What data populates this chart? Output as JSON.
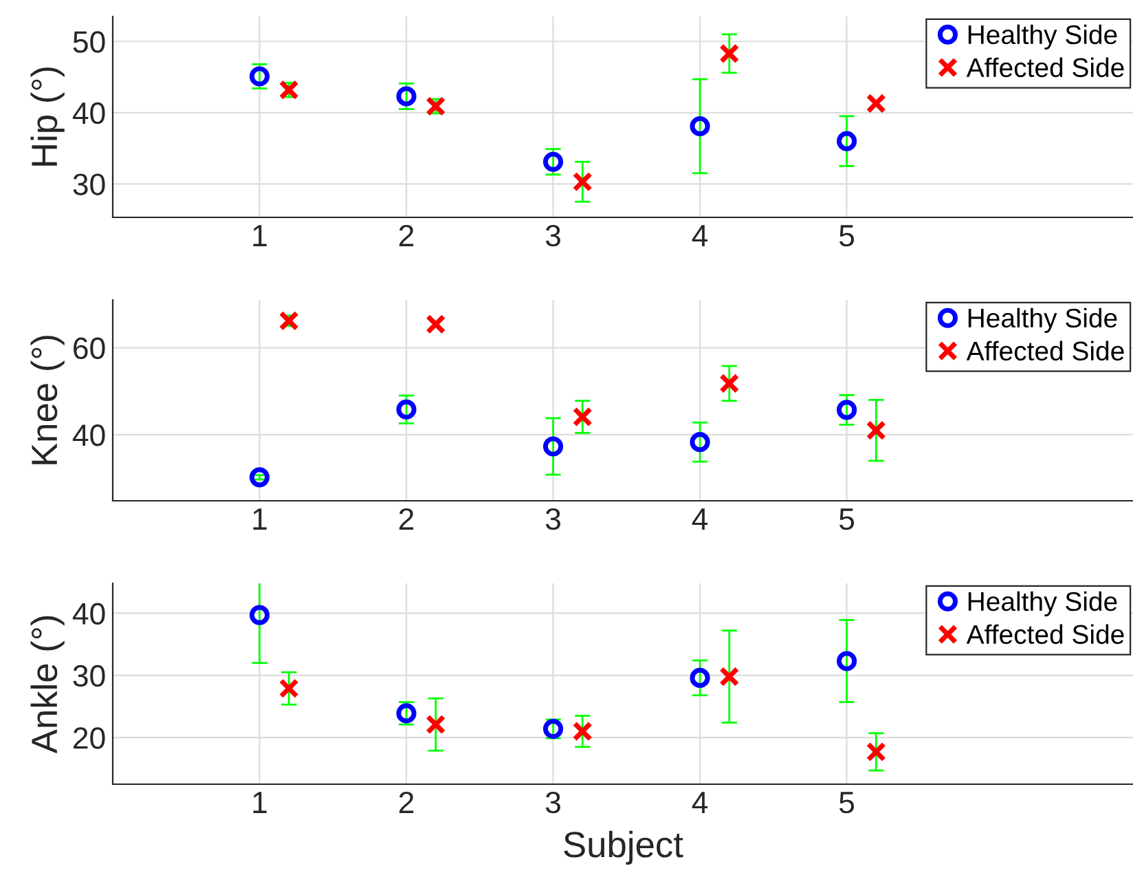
{
  "chart_data": [
    {
      "type": "scatter",
      "ylabel": "Hip (°)",
      "xlim": [
        0,
        6.95
      ],
      "xticks": [
        1,
        2,
        3,
        4,
        5
      ],
      "ylim": [
        25.3,
        53.5
      ],
      "yticks": [
        30,
        40,
        50
      ],
      "grid": true,
      "legend": "top right",
      "series": [
        {
          "name": "Healthy Side",
          "color": "#0000ff",
          "marker": "circle",
          "x": [
            1,
            2,
            3,
            4,
            5
          ],
          "values": [
            45.1,
            42.3,
            33.1,
            38.1,
            36.0
          ],
          "errors": [
            1.7,
            1.8,
            1.8,
            6.6,
            3.5
          ]
        },
        {
          "name": "Affected Side",
          "color": "#ff0000",
          "marker": "cross",
          "x": [
            1.2,
            2.2,
            3.2,
            4.2,
            5.2
          ],
          "values": [
            43.2,
            40.9,
            30.3,
            48.3,
            41.3
          ],
          "errors": [
            1.0,
            1.0,
            2.8,
            2.7,
            null
          ]
        }
      ]
    },
    {
      "type": "scatter",
      "ylabel": "Knee (°)",
      "xlim": [
        0,
        6.95
      ],
      "xticks": [
        1,
        2,
        3,
        4,
        5
      ],
      "ylim": [
        24.8,
        71
      ],
      "yticks": [
        40,
        60
      ],
      "grid": true,
      "legend": "top right",
      "series": [
        {
          "name": "Healthy Side",
          "color": "#0000ff",
          "marker": "circle",
          "x": [
            1,
            2,
            3,
            4,
            5
          ],
          "values": [
            30.2,
            45.8,
            37.3,
            38.3,
            45.7
          ],
          "errors": [
            0.5,
            3.2,
            6.5,
            4.5,
            3.4
          ]
        },
        {
          "name": "Affected Side",
          "color": "#ff0000",
          "marker": "cross",
          "x": [
            1.2,
            2.2,
            3.2,
            4.2,
            5.2
          ],
          "values": [
            66.2,
            65.4,
            44.1,
            51.8,
            41.0
          ],
          "errors": [
            1.2,
            null,
            3.7,
            4.0,
            7.0
          ]
        }
      ]
    },
    {
      "type": "scatter",
      "ylabel": "Ankle (°)",
      "xlabel": "Subject",
      "xlim": [
        0,
        6.95
      ],
      "xticks": [
        1,
        2,
        3,
        4,
        5
      ],
      "ylim": [
        12.5,
        44.8
      ],
      "yticks": [
        20,
        30,
        40
      ],
      "grid": true,
      "legend": "top right",
      "series": [
        {
          "name": "Healthy Side",
          "color": "#0000ff",
          "marker": "circle",
          "x": [
            1,
            2,
            3,
            4,
            5
          ],
          "values": [
            39.7,
            23.9,
            21.4,
            29.6,
            32.3
          ],
          "errors": [
            7.7,
            1.8,
            1.5,
            2.8,
            6.6
          ]
        },
        {
          "name": "Affected Side",
          "color": "#ff0000",
          "marker": "cross",
          "x": [
            1.2,
            2.2,
            3.2,
            4.2,
            5.2
          ],
          "values": [
            27.9,
            22.1,
            21.0,
            29.8,
            17.7
          ],
          "errors": [
            2.6,
            4.2,
            2.5,
            7.4,
            3.0
          ]
        }
      ]
    }
  ]
}
